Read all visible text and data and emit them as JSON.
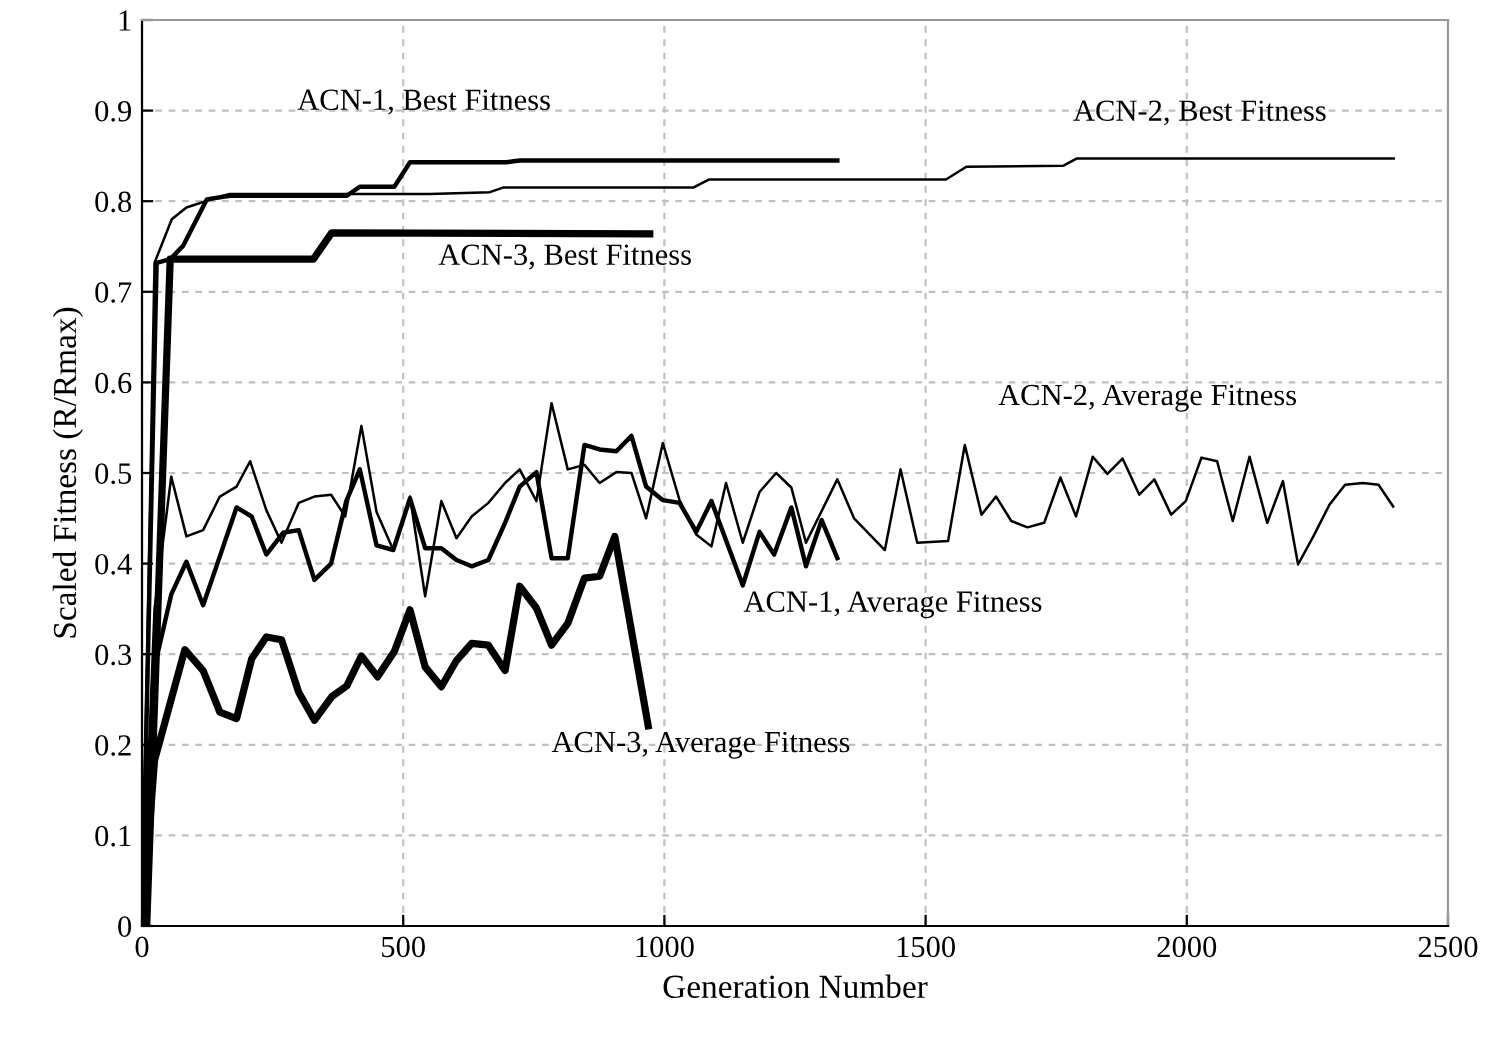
{
  "chart_data": {
    "type": "line",
    "xlabel": "Generation Number",
    "ylabel": "Scaled Fitness (R/Rmax)",
    "xlim": [
      0,
      2500
    ],
    "xticks": [
      0,
      500,
      1000,
      1500,
      2000,
      2500
    ],
    "ylim": [
      0,
      1
    ],
    "yticks": [
      0,
      0.1,
      0.2,
      0.3,
      0.4,
      0.5,
      0.6,
      0.7,
      0.8,
      0.9,
      1
    ],
    "grid": true,
    "legend": false,
    "marker": "none",
    "line_style": "solid",
    "series": [
      {
        "color": "#000000",
        "x": [
          0,
          28,
          54,
          79,
          124,
          168,
          392,
          417,
          483,
          513,
          698,
          723,
          1331
        ],
        "values": [
          0,
          0.732,
          0.736,
          0.751,
          0.802,
          0.806,
          0.806,
          0.816,
          0.816,
          0.843,
          0.843,
          0.845,
          0.845
        ]
      },
      {
        "color": "#000000",
        "x": [
          0,
          24,
          57,
          85,
          149,
          168,
          411,
          551,
          666,
          691,
          1055,
          1086,
          1539,
          1578,
          1763,
          1789,
          2396
        ],
        "values": [
          0,
          0.732,
          0.78,
          0.793,
          0.805,
          0.808,
          0.808,
          0.808,
          0.81,
          0.815,
          0.815,
          0.824,
          0.824,
          0.838,
          0.839,
          0.847,
          0.847
        ]
      },
      {
        "color": "#000000",
        "x": [
          9,
          54,
          328,
          363,
          972
        ],
        "values": [
          0,
          0.736,
          0.736,
          0.765,
          0.764
        ]
      },
      {
        "color": "#000000",
        "x": [
          0,
          24,
          56,
          85,
          117,
          149,
          181,
          210,
          238,
          270,
          300,
          330,
          362,
          391,
          417,
          449,
          481,
          513,
          542,
          573,
          602,
          631,
          663,
          695,
          723,
          755,
          784,
          815,
          847,
          876,
          908,
          937,
          965,
          997,
          1029,
          1061,
          1090,
          1150,
          1182,
          1210,
          1243,
          1271,
          1301,
          1331
        ],
        "values": [
          0,
          0.286,
          0.366,
          0.402,
          0.354,
          0.408,
          0.462,
          0.452,
          0.41,
          0.434,
          0.437,
          0.382,
          0.4,
          0.469,
          0.504,
          0.42,
          0.415,
          0.472,
          0.417,
          0.417,
          0.404,
          0.397,
          0.404,
          0.445,
          0.485,
          0.501,
          0.406,
          0.406,
          0.531,
          0.526,
          0.524,
          0.541,
          0.485,
          0.47,
          0.467,
          0.435,
          0.469,
          0.376,
          0.435,
          0.41,
          0.462,
          0.397,
          0.448,
          0.406
        ]
      },
      {
        "color": "#000000",
        "x": [
          0,
          24,
          56,
          85,
          117,
          149,
          181,
          207,
          238,
          267,
          300,
          330,
          362,
          389,
          420,
          449,
          481,
          513,
          542,
          573,
          602,
          631,
          663,
          695,
          723,
          755,
          784,
          815,
          847,
          876,
          908,
          937,
          965,
          997,
          1029,
          1061,
          1090,
          1118,
          1150,
          1182,
          1214,
          1243,
          1271,
          1331,
          1363,
          1422,
          1452,
          1484,
          1543,
          1575,
          1607,
          1635,
          1664,
          1695,
          1727,
          1758,
          1788,
          1820,
          1848,
          1877,
          1909,
          1938,
          1970,
          1998,
          2028,
          2058,
          2088,
          2120,
          2154,
          2184,
          2213,
          2244,
          2273,
          2303,
          2337,
          2367,
          2395
        ],
        "values": [
          0,
          0.35,
          0.496,
          0.43,
          0.437,
          0.474,
          0.485,
          0.513,
          0.459,
          0.423,
          0.467,
          0.474,
          0.476,
          0.452,
          0.552,
          0.457,
          0.415,
          0.474,
          0.364,
          0.469,
          0.428,
          0.452,
          0.467,
          0.489,
          0.504,
          0.469,
          0.577,
          0.504,
          0.509,
          0.489,
          0.501,
          0.5,
          0.45,
          0.533,
          0.47,
          0.432,
          0.419,
          0.489,
          0.423,
          0.479,
          0.5,
          0.484,
          0.423,
          0.493,
          0.45,
          0.415,
          0.504,
          0.423,
          0.425,
          0.531,
          0.454,
          0.474,
          0.447,
          0.44,
          0.445,
          0.495,
          0.452,
          0.518,
          0.499,
          0.516,
          0.476,
          0.493,
          0.454,
          0.469,
          0.517,
          0.513,
          0.447,
          0.518,
          0.445,
          0.491,
          0.399,
          0.432,
          0.465,
          0.487,
          0.489,
          0.487,
          0.463
        ]
      },
      {
        "color": "#000000",
        "x": [
          0,
          24,
          82,
          117,
          149,
          181,
          210,
          238,
          267,
          300,
          330,
          363,
          392,
          420,
          451,
          483,
          513,
          542,
          573,
          602,
          631,
          663,
          695,
          723,
          755,
          784,
          815,
          847,
          876,
          905,
          969
        ],
        "values": [
          0,
          0.183,
          0.305,
          0.282,
          0.236,
          0.229,
          0.295,
          0.319,
          0.316,
          0.258,
          0.227,
          0.253,
          0.265,
          0.298,
          0.275,
          0.303,
          0.349,
          0.286,
          0.264,
          0.293,
          0.312,
          0.31,
          0.282,
          0.375,
          0.351,
          0.31,
          0.334,
          0.384,
          0.386,
          0.43,
          0.221
        ]
      }
    ],
    "annotations": [
      "ACN-1, Best Fitness",
      "ACN-2, Best Fitness",
      "ACN-3, Best Fitness",
      "ACN-2, Average Fitness",
      "ACN-1, Average Fitness",
      "ACN-3, Average Fitness"
    ]
  }
}
